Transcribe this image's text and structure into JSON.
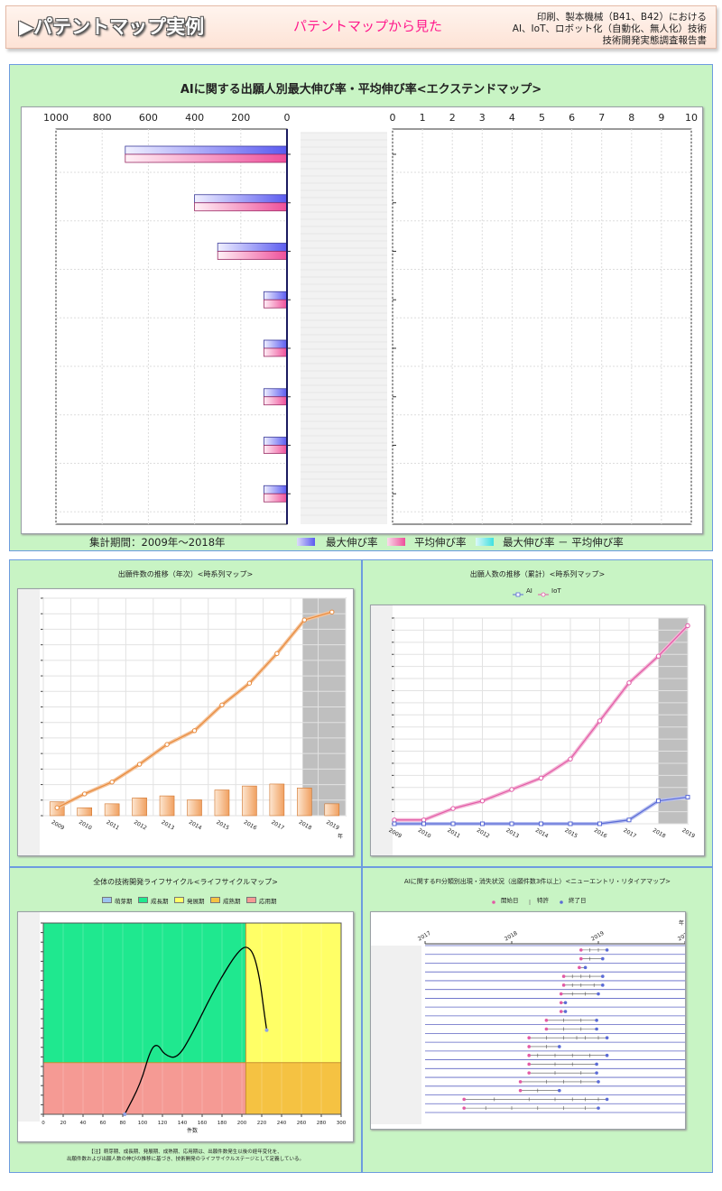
{
  "header": {
    "title": "▶パテントマップ実例",
    "subtitle": "パテントマップから見た",
    "desc_lines": [
      "印刷、製本機械（B41、B42）における",
      "AI、IoT、ロボット化（自動化、無人化）技術",
      "技術開発実態調査報告書"
    ]
  },
  "colors": {
    "panel_bg": "#c8f4c4",
    "max_rate": "#5b5bf0",
    "avg_rate": "#ee4f9a",
    "diff_rate": "#3ee0e0",
    "line_orange": "#e88a3c",
    "line_pink": "#e25aa6",
    "line_blue": "#5b6bd6"
  },
  "top": {
    "title": "AIに関する出願人別最大伸び率・平均伸び率<エクステンドマップ>",
    "period": "集計期間：2009年～2018年",
    "legend": [
      "最大伸び率",
      "平均伸び率",
      "最大伸び率 － 平均伸び率"
    ]
  },
  "mid_left": {
    "title": "出願件数の推移（年次）<時系列マップ>",
    "year_unit": "年"
  },
  "mid_right": {
    "title": "出願人数の推移（累計）<時系列マップ>",
    "legend": [
      "AI",
      "IoT"
    ]
  },
  "bot_left": {
    "title": "全体の技術開発ライフサイクル<ライフサイクルマップ>",
    "legend": [
      "萌芽期",
      "成長期",
      "発展期",
      "成熟期",
      "応用期"
    ],
    "xlabel": "件数",
    "note_lines": [
      "【注】萌芽期、成長期、発展期、成熟期、応用期は、出願件数発生以後の経年変化を、",
      "出願件数および出願人数の伸びの推移に基づき、技術開発のライフサイクルステージとして定義している。"
    ]
  },
  "bot_right": {
    "title": "AIに関するFI分類別出現・消失状況（出願件数3件以上）<ニューエントリ・リタイアマップ>",
    "legend": [
      "開始日",
      "特許",
      "終了日"
    ],
    "year_unit": "年"
  },
  "chart_data": [
    {
      "type": "bar",
      "title": "AIに関する出願人別最大伸び率・平均伸び率<エクステンドマップ>",
      "orientation": "horizontal",
      "left_axis_ticks": [
        "1000",
        "800",
        "600",
        "400",
        "200",
        "0"
      ],
      "right_axis_ticks": [
        "0",
        "1",
        "2",
        "3",
        "4",
        "5",
        "6",
        "7",
        "8",
        "9",
        "10"
      ],
      "xlim_left": [
        1000,
        0
      ],
      "xlim_right": [
        0,
        10
      ],
      "series": [
        {
          "name": "最大伸び率",
          "values": [
            700,
            400,
            300,
            100,
            100,
            100,
            100,
            100
          ]
        },
        {
          "name": "平均伸び率",
          "values": [
            700,
            400,
            300,
            100,
            100,
            100,
            100,
            100
          ]
        },
        {
          "name": "最大伸び率 － 平均伸び率",
          "values": [
            0,
            0,
            0,
            0,
            0,
            0,
            0,
            0
          ]
        }
      ]
    },
    {
      "type": "line",
      "title": "出願件数の推移（年次）<時系列マップ>",
      "categories": [
        "2009",
        "2010",
        "2011",
        "2012",
        "2013",
        "2014",
        "2015",
        "2016",
        "2017",
        "2018",
        "2019"
      ],
      "series": [
        {
          "name": "cumulative",
          "values": [
            4,
            11,
            17,
            26,
            36,
            43,
            56,
            67,
            82,
            99,
            103
          ]
        },
        {
          "name": "annual",
          "values": [
            7,
            4,
            6,
            9,
            10,
            8,
            13,
            15,
            16,
            14,
            6
          ]
        }
      ],
      "ylim": [
        0,
        110
      ],
      "forecast_from": "2018"
    },
    {
      "type": "line",
      "title": "出願人数の推移（累計）<時系列マップ>",
      "categories": [
        "2009",
        "2010",
        "2011",
        "2012",
        "2013",
        "2014",
        "2015",
        "2016",
        "2017",
        "2018",
        "2019"
      ],
      "series": [
        {
          "name": "AI",
          "values": [
            0,
            0,
            0,
            0,
            0,
            0,
            0,
            0,
            1,
            6,
            7
          ]
        },
        {
          "name": "IoT",
          "values": [
            1,
            1,
            4,
            6,
            9,
            12,
            17,
            27,
            37,
            44,
            52
          ]
        }
      ],
      "ylim": [
        0,
        54
      ],
      "forecast_from": "2018"
    },
    {
      "type": "line",
      "title": "全体の技術開発ライフサイクル<ライフサイクルマップ>",
      "x_ticks": [
        "0",
        "20",
        "40",
        "60",
        "80",
        "100",
        "120",
        "140",
        "160",
        "180",
        "200",
        "220",
        "240",
        "260",
        "280",
        "300"
      ],
      "xlim": [
        0,
        300
      ],
      "ylim": [
        0,
        100
      ],
      "phase_split_x": 204,
      "phase_split_y": 27,
      "curve": [
        [
          82,
          0
        ],
        [
          98,
          16
        ],
        [
          108,
          34
        ],
        [
          115,
          37
        ],
        [
          122,
          31
        ],
        [
          135,
          29
        ],
        [
          150,
          42
        ],
        [
          170,
          63
        ],
        [
          188,
          79
        ],
        [
          198,
          86
        ],
        [
          205,
          88
        ],
        [
          212,
          84
        ],
        [
          218,
          71
        ],
        [
          222,
          55
        ],
        [
          225,
          44
        ]
      ]
    },
    {
      "type": "scatter",
      "title": "AIに関するFI分類別出現・消失状況（出願件数3件以上）<ニューエントリ・リタイアマップ>",
      "x_ticks": [
        "2017",
        "2018",
        "2019",
        "2020"
      ],
      "xlim": [
        2017,
        2020
      ],
      "rows": [
        {
          "start": 2018.8,
          "end": 2019.1,
          "patents": [
            2018.9,
            2019.0
          ]
        },
        {
          "start": 2018.8,
          "end": 2019.05,
          "patents": [
            2018.9
          ]
        },
        {
          "start": 2018.78,
          "end": 2018.85,
          "patents": []
        },
        {
          "start": 2018.6,
          "end": 2019.05,
          "patents": [
            2018.7,
            2018.8,
            2018.9
          ]
        },
        {
          "start": 2018.6,
          "end": 2019.05,
          "patents": [
            2018.7,
            2018.8,
            2018.95
          ]
        },
        {
          "start": 2018.57,
          "end": 2019.0,
          "patents": [
            2018.7,
            2018.85
          ]
        },
        {
          "start": 2018.57,
          "end": 2018.62,
          "patents": []
        },
        {
          "start": 2018.57,
          "end": 2018.62,
          "patents": []
        },
        {
          "start": 2018.4,
          "end": 2018.98,
          "patents": [
            2018.6,
            2018.8
          ]
        },
        {
          "start": 2018.4,
          "end": 2018.98,
          "patents": [
            2018.6,
            2018.8
          ]
        },
        {
          "start": 2018.2,
          "end": 2019.1,
          "patents": [
            2018.4,
            2018.6,
            2018.75,
            2018.85,
            2019.0
          ]
        },
        {
          "start": 2018.2,
          "end": 2018.55,
          "patents": [
            2018.4
          ]
        },
        {
          "start": 2018.2,
          "end": 2019.1,
          "patents": [
            2018.3,
            2018.5,
            2018.7,
            2018.9
          ]
        },
        {
          "start": 2018.2,
          "end": 2018.98,
          "patents": [
            2018.5,
            2018.7
          ]
        },
        {
          "start": 2018.2,
          "end": 2018.98,
          "patents": [
            2018.5,
            2018.8
          ]
        },
        {
          "start": 2018.1,
          "end": 2019.0,
          "patents": [
            2018.4,
            2018.6,
            2018.8
          ]
        },
        {
          "start": 2018.1,
          "end": 2018.55,
          "patents": [
            2018.3
          ]
        },
        {
          "start": 2017.45,
          "end": 2019.1,
          "patents": [
            2017.8,
            2018.2,
            2018.5,
            2018.7,
            2018.85,
            2019.0
          ]
        },
        {
          "start": 2017.45,
          "end": 2019.0,
          "patents": [
            2017.7,
            2018.0,
            2018.3,
            2018.6,
            2018.85
          ]
        }
      ]
    }
  ]
}
